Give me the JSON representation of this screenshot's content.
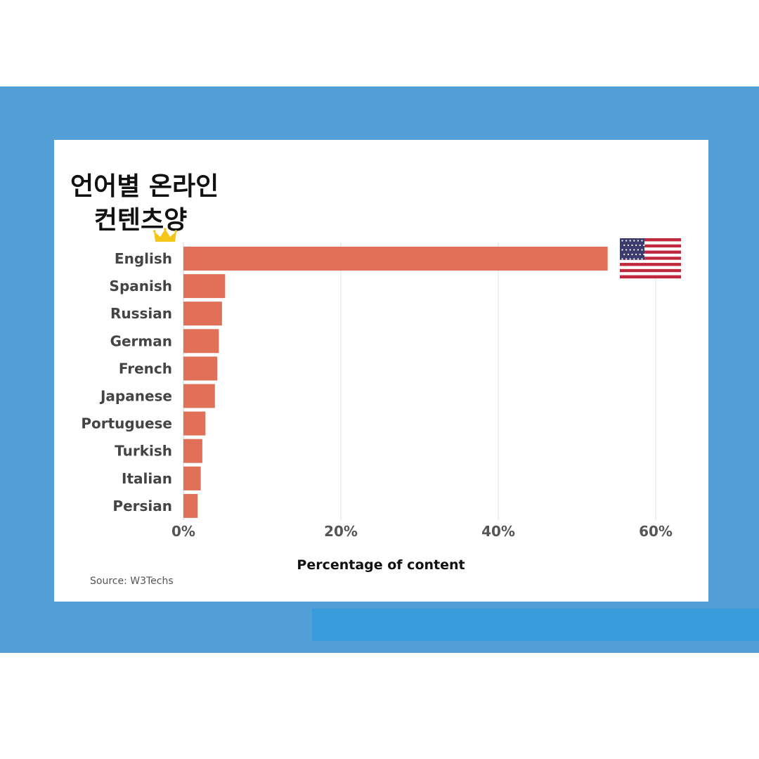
{
  "title": {
    "line1": "언어별 온라인",
    "line2": "컨텐츠양"
  },
  "chart_data": {
    "type": "bar",
    "orientation": "horizontal",
    "categories": [
      "English",
      "Spanish",
      "Russian",
      "German",
      "French",
      "Japanese",
      "Portuguese",
      "Turkish",
      "Italian",
      "Persian"
    ],
    "values": [
      53.9,
      5.3,
      4.9,
      4.5,
      4.3,
      4.0,
      2.8,
      2.4,
      2.2,
      1.8
    ],
    "xlabel": "Percentage of content",
    "xlim": [
      0,
      60
    ],
    "xticks": [
      0,
      20,
      40,
      60
    ],
    "xtick_labels": [
      "0%",
      "20%",
      "40%",
      "60%"
    ],
    "grid": true,
    "bar_color": "#e07058",
    "source": "Source: W3Techs"
  },
  "decorations": {
    "crown": "crown-icon",
    "flag": "us-flag-icon",
    "background_color": "#519fd5"
  }
}
